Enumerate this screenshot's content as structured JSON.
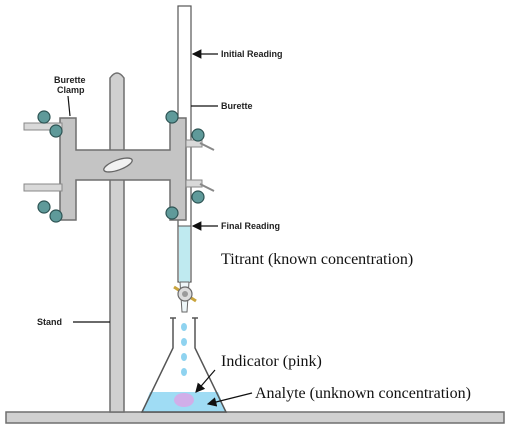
{
  "labels": {
    "burette_clamp_line1": "Burette",
    "burette_clamp_line2": "Clamp",
    "initial_reading": "Initial Reading",
    "burette": "Burette",
    "final_reading": "Final Reading",
    "stand": "Stand",
    "titrant": "Titrant (known concentration)",
    "indicator": "Indicator (pink)",
    "analyte": "Analyte (unknown concentration)"
  },
  "colors": {
    "metal": "#c4c4c4",
    "metal_edge": "#6f6f6f",
    "knob": "#5f9a9a",
    "titrant_liquid": "#bfeaf0",
    "drop": "#8fd3f0",
    "analyte_liquid": "#9fdcf4",
    "indicator": "#d9a6e6"
  }
}
